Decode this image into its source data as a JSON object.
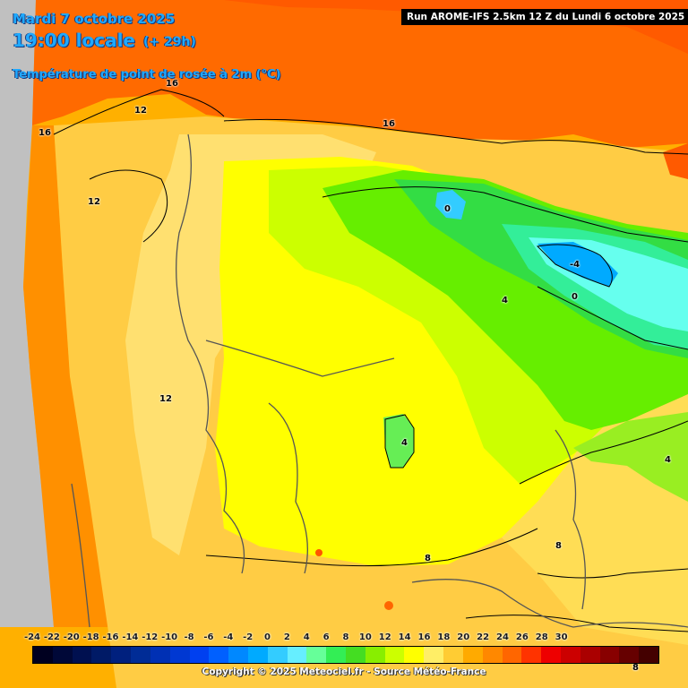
{
  "header": {
    "date": "Mardi 7 octobre 2025",
    "time": "19:00 locale",
    "lead": "(+ 29h)",
    "parameter": "Température de point de rosée à 2m (°C)",
    "run_info": "Run AROME-IFS 2.5km 12 Z du Lundi 6 octobre 2025"
  },
  "contour_labels": [
    "16",
    "12",
    "16",
    "16",
    "12",
    "0",
    "-4",
    "4",
    "0",
    "12",
    "4",
    "4",
    "8",
    "8",
    "8"
  ],
  "legend": {
    "ticks": [
      "-24",
      "-22",
      "-20",
      "-18",
      "-16",
      "-14",
      "-12",
      "-10",
      "-8",
      "-6",
      "-4",
      "-2",
      "0",
      "2",
      "4",
      "6",
      "8",
      "10",
      "12",
      "14",
      "16",
      "18",
      "20",
      "22",
      "24",
      "26",
      "28",
      "30"
    ],
    "colors": [
      "#000020",
      "#000838",
      "#001050",
      "#001a66",
      "#00207e",
      "#002c96",
      "#0030b4",
      "#0038d2",
      "#0040f0",
      "#0060ff",
      "#0088ff",
      "#00aaff",
      "#33ccff",
      "#66eeff",
      "#66ff99",
      "#33ee55",
      "#44dd22",
      "#88ee00",
      "#ccff00",
      "#ffff00",
      "#ffee66",
      "#ffcc33",
      "#ffaa00",
      "#ff8800",
      "#ff6600",
      "#ff3300",
      "#ee0000",
      "#cc0000",
      "#aa0000",
      "#880000",
      "#660000",
      "#440000"
    ]
  },
  "footer": {
    "copyright": "Copyright © 2025 Meteociel.fr - Source Météo-France"
  }
}
